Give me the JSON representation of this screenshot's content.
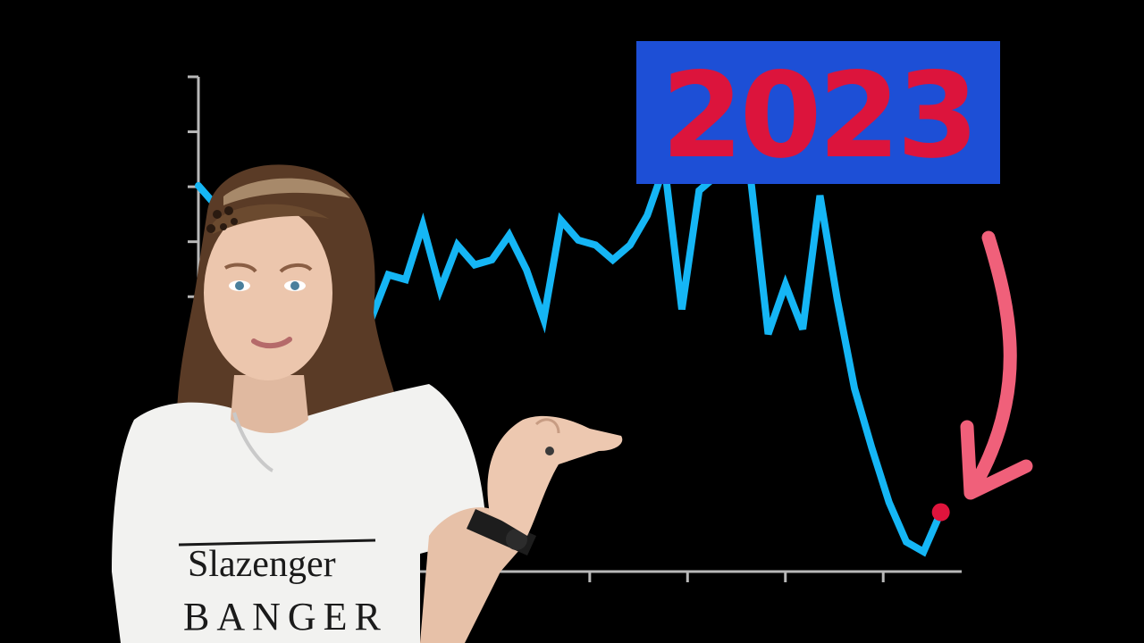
{
  "thumbnail": {
    "year_label": "2023",
    "shirt_text_top": "Slazenger",
    "shirt_text_bottom": "BANGER"
  },
  "colors": {
    "background": "#000000",
    "line": "#15b6f5",
    "axis": "#b8b8b8",
    "year_box": "#1d4fd6",
    "year_text": "#dc143c",
    "arrow": "#f0607a",
    "end_dot": "#e0143c"
  },
  "chart_data": {
    "type": "line",
    "title": "",
    "xlabel": "",
    "ylabel": "",
    "grid": false,
    "x_tick_labels": [],
    "y_tick_labels": [],
    "x": [
      0,
      1,
      2,
      3,
      4,
      5,
      6,
      7,
      8,
      9,
      10,
      11,
      12,
      13,
      14,
      15,
      16,
      17,
      18,
      19,
      20,
      21,
      22,
      23,
      24,
      25,
      26,
      27,
      28,
      29,
      30,
      31,
      32,
      33,
      34,
      35,
      36,
      37,
      38,
      39,
      40,
      41,
      42,
      43
    ],
    "xlim": [
      0,
      44
    ],
    "ylim": [
      0,
      100
    ],
    "series": [
      {
        "values": [
          78,
          74,
          72,
          66,
          63,
          60,
          58,
          57,
          60,
          52,
          51,
          60,
          59,
          70,
          57,
          66,
          62,
          63,
          68,
          61,
          51,
          71,
          67,
          66,
          63,
          66,
          72,
          82,
          53,
          77,
          80,
          83,
          79,
          48,
          58,
          49,
          76,
          55,
          37,
          25,
          14,
          6,
          4,
          12
        ]
      }
    ],
    "annotations": [
      "2023"
    ]
  }
}
